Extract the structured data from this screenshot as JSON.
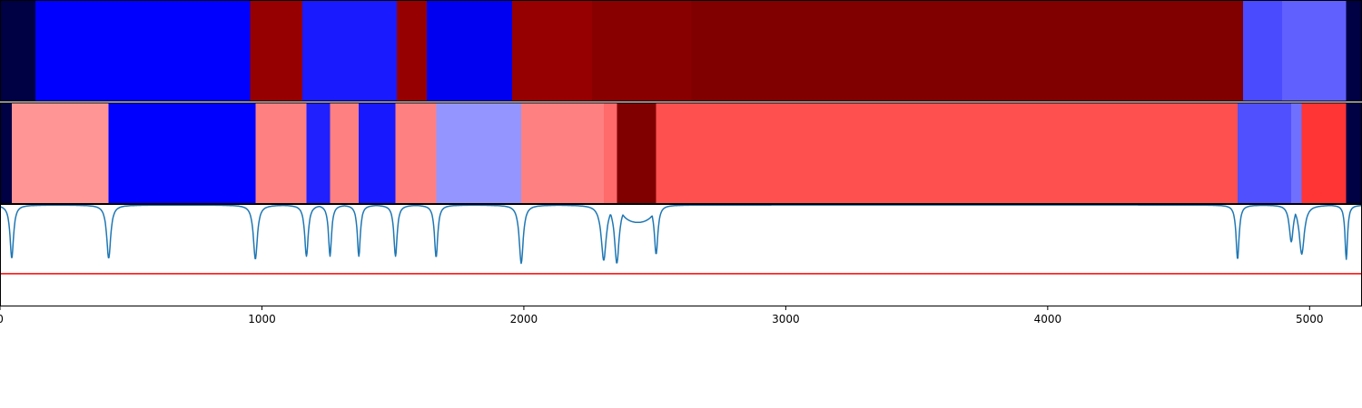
{
  "chart_data": [
    {
      "type": "heatmap",
      "name": "segment-band-1",
      "xlim": [
        0,
        5200
      ],
      "segments": [
        {
          "start": 0,
          "end": 135,
          "color": "#000045"
        },
        {
          "start": 135,
          "end": 955,
          "color": "#0000ff"
        },
        {
          "start": 955,
          "end": 1155,
          "color": "#960000"
        },
        {
          "start": 1155,
          "end": 1515,
          "color": "#1a1aff"
        },
        {
          "start": 1515,
          "end": 1630,
          "color": "#960000"
        },
        {
          "start": 1630,
          "end": 1955,
          "color": "#0000f0"
        },
        {
          "start": 1955,
          "end": 2260,
          "color": "#960000"
        },
        {
          "start": 2260,
          "end": 2640,
          "color": "#880000"
        },
        {
          "start": 2640,
          "end": 4745,
          "color": "#800000"
        },
        {
          "start": 4745,
          "end": 4895,
          "color": "#4a4aff"
        },
        {
          "start": 4895,
          "end": 5140,
          "color": "#6060ff"
        },
        {
          "start": 5140,
          "end": 5200,
          "color": "#000045"
        }
      ]
    },
    {
      "type": "heatmap",
      "name": "segment-band-2",
      "xlim": [
        0,
        5200
      ],
      "segments": [
        {
          "start": 0,
          "end": 45,
          "color": "#000045"
        },
        {
          "start": 45,
          "end": 415,
          "color": "#ff9595"
        },
        {
          "start": 415,
          "end": 975,
          "color": "#0000ff"
        },
        {
          "start": 975,
          "end": 1170,
          "color": "#ff8080"
        },
        {
          "start": 1170,
          "end": 1260,
          "color": "#2020ff"
        },
        {
          "start": 1260,
          "end": 1370,
          "color": "#ff8080"
        },
        {
          "start": 1370,
          "end": 1510,
          "color": "#1818ff"
        },
        {
          "start": 1510,
          "end": 1665,
          "color": "#ff8080"
        },
        {
          "start": 1665,
          "end": 1990,
          "color": "#9595ff"
        },
        {
          "start": 1990,
          "end": 2305,
          "color": "#ff8080"
        },
        {
          "start": 2305,
          "end": 2355,
          "color": "#ff6a6a"
        },
        {
          "start": 2355,
          "end": 2505,
          "color": "#800000"
        },
        {
          "start": 2505,
          "end": 4725,
          "color": "#ff5050"
        },
        {
          "start": 4725,
          "end": 4930,
          "color": "#5050ff"
        },
        {
          "start": 4930,
          "end": 4970,
          "color": "#7070ff"
        },
        {
          "start": 4970,
          "end": 5140,
          "color": "#ff3535"
        },
        {
          "start": 5140,
          "end": 5200,
          "color": "#000045"
        }
      ]
    },
    {
      "type": "line",
      "name": "signal-trace",
      "xlim": [
        0,
        5200
      ],
      "ylim": [
        0,
        1
      ],
      "line_color": "#1f77b4",
      "threshold": {
        "value": 0.32,
        "color": "#ff0000"
      },
      "baseline": 0.99,
      "dips": [
        {
          "x": 45,
          "depth": 0.47,
          "width": 14
        },
        {
          "x": 415,
          "depth": 0.47,
          "width": 16
        },
        {
          "x": 975,
          "depth": 0.46,
          "width": 16
        },
        {
          "x": 1170,
          "depth": 0.49,
          "width": 14
        },
        {
          "x": 1260,
          "depth": 0.49,
          "width": 12
        },
        {
          "x": 1370,
          "depth": 0.49,
          "width": 12
        },
        {
          "x": 1510,
          "depth": 0.49,
          "width": 13
        },
        {
          "x": 1665,
          "depth": 0.48,
          "width": 13
        },
        {
          "x": 1990,
          "depth": 0.42,
          "width": 16
        },
        {
          "x": 2305,
          "depth": 0.45,
          "width": 20
        },
        {
          "x": 2355,
          "depth": 0.42,
          "width": 18
        },
        {
          "x": 2505,
          "depth": 0.51,
          "width": 14
        },
        {
          "x": 4725,
          "depth": 0.46,
          "width": 12
        },
        {
          "x": 4930,
          "depth": 0.63,
          "width": 16
        },
        {
          "x": 4970,
          "depth": 0.51,
          "width": 20
        },
        {
          "x": 5140,
          "depth": 0.46,
          "width": 10
        }
      ],
      "bump": {
        "start": 2370,
        "end": 2500,
        "level": 0.82
      }
    }
  ],
  "x_axis": {
    "range": [
      0,
      5200
    ],
    "ticks": [
      0,
      1000,
      2000,
      3000,
      4000,
      5000
    ],
    "tick_labels": [
      "0",
      "1000",
      "2000",
      "3000",
      "4000",
      "5000"
    ]
  }
}
